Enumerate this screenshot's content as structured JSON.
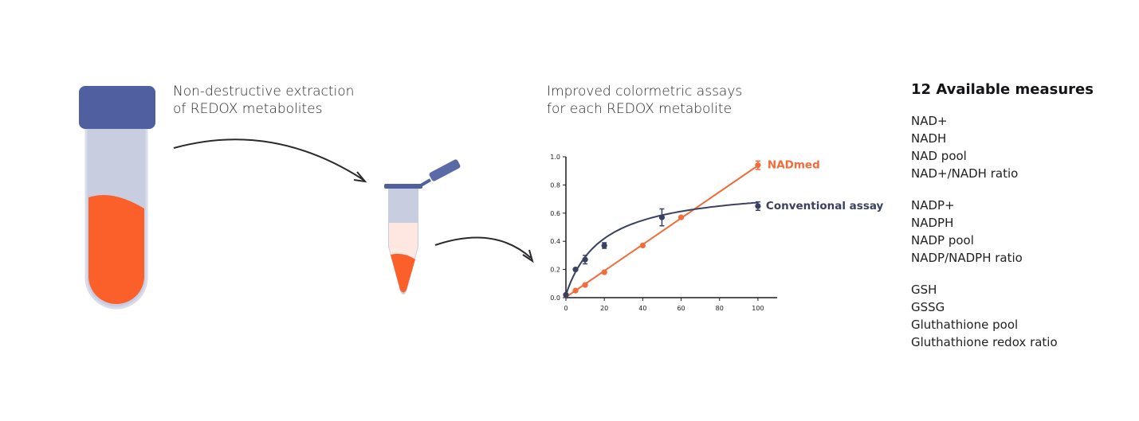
{
  "captions": {
    "extraction": [
      "Non-destructive extraction",
      "of REDOX metabolites"
    ],
    "assay": [
      "Improved colormetric assays",
      "for each REDOX metabolite"
    ]
  },
  "measures": {
    "title": "12 Available measures",
    "groups": [
      [
        "NAD+",
        "NADH",
        "NAD pool",
        "NAD+/NADH ratio"
      ],
      [
        "NADP+",
        "NADPH",
        "NADP pool",
        "NADP/NADPH ratio"
      ],
      [
        "GSH",
        "GSSG",
        "Gluthathione pool",
        "Gluthathione redox ratio"
      ]
    ]
  },
  "colors": {
    "orange": "#f26b3a",
    "navy": "#3a4160",
    "cap": "#4f5f9f",
    "tube_glass": "#c8cde0",
    "liquid": "#fb5f2a"
  },
  "chart_data": {
    "type": "line",
    "x_ticks": [
      0,
      20,
      40,
      60,
      80,
      100
    ],
    "y_ticks": [
      0.0,
      0.2,
      0.4,
      0.6,
      0.8,
      1.0
    ],
    "x_tick_labels": [
      "0",
      "20",
      "40",
      "60",
      "80",
      "100"
    ],
    "y_tick_labels": [
      "0.0",
      "0.2",
      "0.4",
      "0.6",
      "0.8",
      "1.0"
    ],
    "xlim": [
      0,
      110
    ],
    "ylim": [
      0,
      1.0
    ],
    "series": [
      {
        "name": "NADmed",
        "color": "#f26b3a",
        "x": [
          0,
          5,
          10,
          20,
          40,
          60,
          100
        ],
        "y": [
          0.02,
          0.05,
          0.09,
          0.18,
          0.37,
          0.57,
          0.94
        ],
        "err": [
          0,
          0,
          0,
          0,
          0,
          0,
          0.03
        ],
        "fit": "linear"
      },
      {
        "name": "Conventional assay",
        "color": "#3a4160",
        "x": [
          0,
          5,
          10,
          20,
          50,
          100
        ],
        "y": [
          0.02,
          0.2,
          0.27,
          0.37,
          0.57,
          0.65
        ],
        "err": [
          0,
          0,
          0.03,
          0.02,
          0.06,
          0.03
        ],
        "fit": "saturation"
      }
    ]
  }
}
